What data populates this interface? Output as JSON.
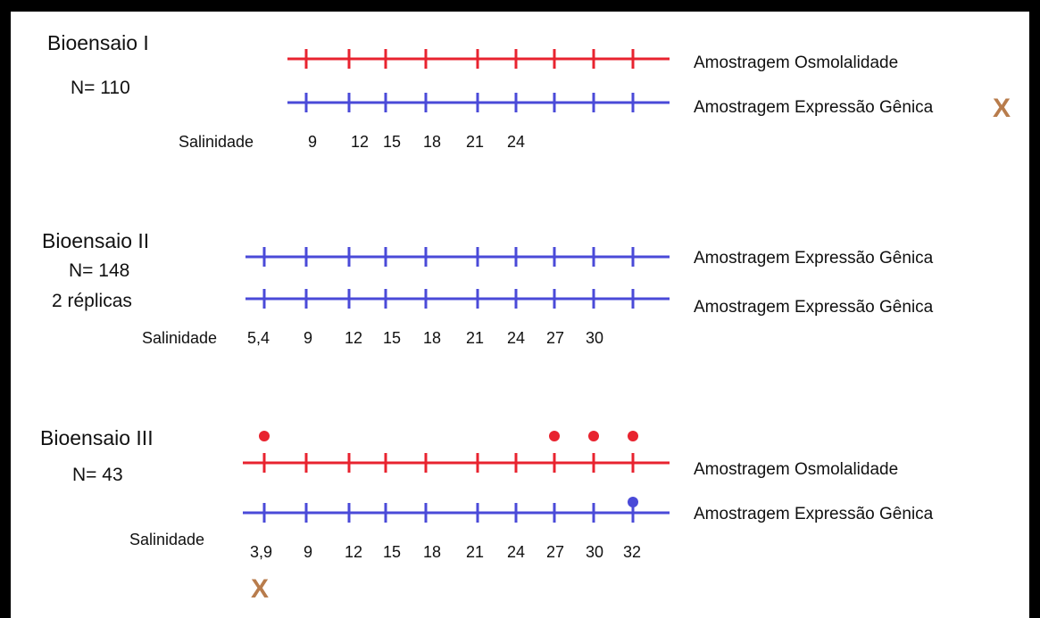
{
  "colors": {
    "osmolality": "#e8232f",
    "gene_expression": "#4a4ad8",
    "x_mark": "#b87c4c"
  },
  "x_mark_label": "X",
  "salinity_label": "Salinidade",
  "bioassays": [
    {
      "title": "Bioensaio I",
      "subtitle": [
        "N= 110"
      ],
      "lines": [
        {
          "type": "osmolality",
          "label": "Amostragem Osmolalidade",
          "x_mark": false
        },
        {
          "type": "gene_expression",
          "label": "Amostragem Expressão Gênica",
          "x_mark": true
        }
      ],
      "salinity_ticks": [
        "9",
        "12",
        "15",
        "18",
        "21",
        "24"
      ],
      "dots": [],
      "x_under_first_tick": false
    },
    {
      "title": "Bioensaio II",
      "subtitle": [
        "N= 148",
        "2 réplicas"
      ],
      "lines": [
        {
          "type": "gene_expression",
          "label": "Amostragem Expressão Gênica",
          "x_mark": false
        },
        {
          "type": "gene_expression",
          "label": "Amostragem Expressão Gênica",
          "x_mark": false
        }
      ],
      "salinity_ticks": [
        "5,4",
        "9",
        "12",
        "15",
        "18",
        "21",
        "24",
        "27",
        "30"
      ],
      "dots": [],
      "x_under_first_tick": false
    },
    {
      "title": "Bioensaio III",
      "subtitle": [
        "N= 43"
      ],
      "lines": [
        {
          "type": "osmolality",
          "label": "Amostragem Osmolalidade",
          "x_mark": false
        },
        {
          "type": "gene_expression",
          "label": "Amostragem Expressão Gênica",
          "x_mark": false
        }
      ],
      "salinity_ticks": [
        "3,9",
        "9",
        "12",
        "15",
        "18",
        "21",
        "24",
        "27",
        "30",
        "32"
      ],
      "dots": [
        {
          "salinity": "3,9",
          "type": "osmolality"
        },
        {
          "salinity": "27",
          "type": "osmolality"
        },
        {
          "salinity": "30",
          "type": "osmolality"
        },
        {
          "salinity": "32",
          "type": "osmolality"
        },
        {
          "salinity": "32",
          "type": "gene_expression"
        }
      ],
      "x_under_first_tick": true
    }
  ]
}
